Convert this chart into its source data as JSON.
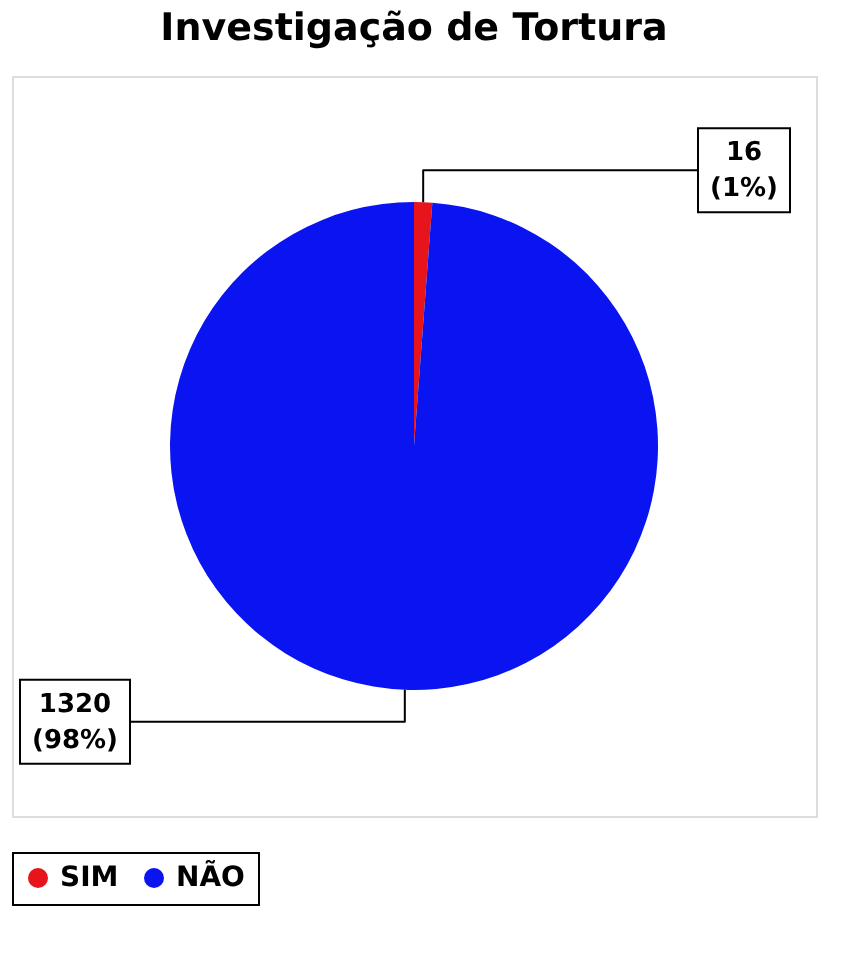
{
  "chart_data": {
    "type": "pie",
    "title": "Investigação de Tortura",
    "categories": [
      "SIM",
      "NÃO"
    ],
    "values": [
      16,
      1320
    ],
    "colors": [
      "#e8141c",
      "#0a14f0"
    ],
    "value_labels": [
      "16\n(1%)",
      "1320\n(98%)"
    ],
    "legend": "bottom"
  }
}
